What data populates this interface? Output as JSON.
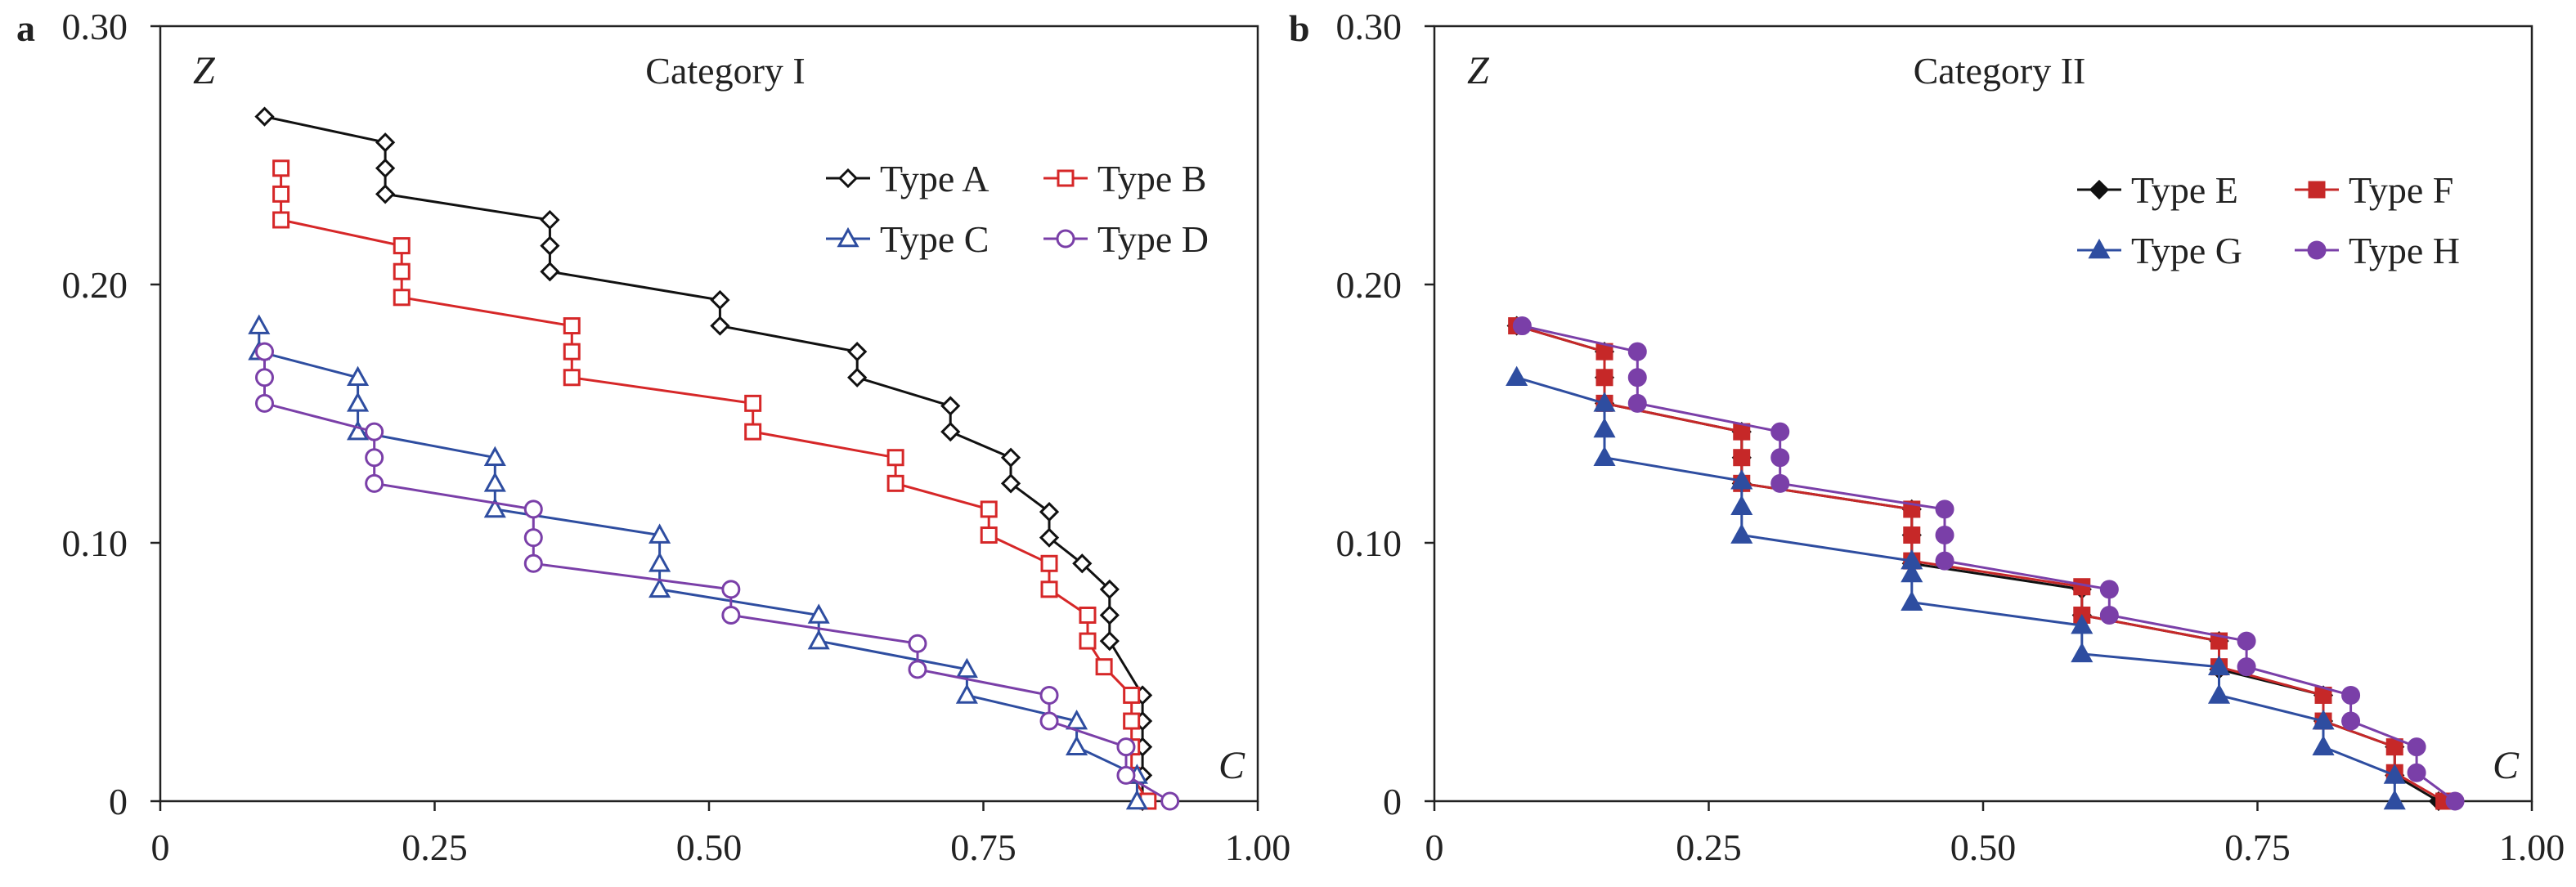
{
  "chart_data": [
    {
      "type": "line",
      "panel_label": "a",
      "title": "Category I",
      "xlabel": "C",
      "ylabel": "Z",
      "xlim": [
        0,
        1.0
      ],
      "ylim": [
        0,
        0.3
      ],
      "x_ticks": [
        "0",
        "0.25",
        "0.50",
        "0.75",
        "1.00"
      ],
      "y_ticks": [
        "0",
        "0.10",
        "0.20",
        "0.30"
      ],
      "grid": false,
      "legend_position": "top-right",
      "series": [
        {
          "name": "Type A",
          "color": "#111111",
          "marker": "diamond-open",
          "points": [
            [
              0.095,
              0.265
            ],
            [
              0.205,
              0.255
            ],
            [
              0.205,
              0.245
            ],
            [
              0.205,
              0.235
            ],
            [
              0.355,
              0.225
            ],
            [
              0.355,
              0.215
            ],
            [
              0.355,
              0.205
            ],
            [
              0.51,
              0.194
            ],
            [
              0.51,
              0.184
            ],
            [
              0.635,
              0.174
            ],
            [
              0.635,
              0.164
            ],
            [
              0.72,
              0.153
            ],
            [
              0.72,
              0.143
            ],
            [
              0.775,
              0.133
            ],
            [
              0.775,
              0.123
            ],
            [
              0.81,
              0.112
            ],
            [
              0.81,
              0.102
            ],
            [
              0.84,
              0.092
            ],
            [
              0.865,
              0.082
            ],
            [
              0.865,
              0.072
            ],
            [
              0.865,
              0.062
            ],
            [
              0.895,
              0.041
            ],
            [
              0.895,
              0.031
            ],
            [
              0.895,
              0.021
            ],
            [
              0.895,
              0.01
            ],
            [
              0.895,
              0.0
            ]
          ]
        },
        {
          "name": "Type B",
          "color": "#d62728",
          "marker": "square-open",
          "points": [
            [
              0.11,
              0.245
            ],
            [
              0.11,
              0.235
            ],
            [
              0.11,
              0.225
            ],
            [
              0.22,
              0.215
            ],
            [
              0.22,
              0.205
            ],
            [
              0.22,
              0.195
            ],
            [
              0.375,
              0.184
            ],
            [
              0.375,
              0.174
            ],
            [
              0.375,
              0.164
            ],
            [
              0.54,
              0.154
            ],
            [
              0.54,
              0.143
            ],
            [
              0.67,
              0.133
            ],
            [
              0.67,
              0.123
            ],
            [
              0.755,
              0.113
            ],
            [
              0.755,
              0.103
            ],
            [
              0.81,
              0.092
            ],
            [
              0.81,
              0.082
            ],
            [
              0.845,
              0.072
            ],
            [
              0.845,
              0.062
            ],
            [
              0.86,
              0.052
            ],
            [
              0.885,
              0.041
            ],
            [
              0.885,
              0.031
            ],
            [
              0.885,
              0.021
            ],
            [
              0.885,
              0.01
            ],
            [
              0.9,
              0.0
            ]
          ]
        },
        {
          "name": "Type C",
          "color": "#2e4da0",
          "marker": "triangle-open",
          "points": [
            [
              0.09,
              0.184
            ],
            [
              0.09,
              0.174
            ],
            [
              0.18,
              0.164
            ],
            [
              0.18,
              0.154
            ],
            [
              0.18,
              0.143
            ],
            [
              0.305,
              0.133
            ],
            [
              0.305,
              0.123
            ],
            [
              0.305,
              0.113
            ],
            [
              0.455,
              0.103
            ],
            [
              0.455,
              0.092
            ],
            [
              0.455,
              0.082
            ],
            [
              0.6,
              0.072
            ],
            [
              0.6,
              0.062
            ],
            [
              0.735,
              0.051
            ],
            [
              0.735,
              0.041
            ],
            [
              0.835,
              0.031
            ],
            [
              0.835,
              0.021
            ],
            [
              0.89,
              0.01
            ],
            [
              0.89,
              0.0
            ]
          ]
        },
        {
          "name": "Type D",
          "color": "#7a3fa8",
          "marker": "circle-open",
          "points": [
            [
              0.095,
              0.174
            ],
            [
              0.095,
              0.164
            ],
            [
              0.095,
              0.154
            ],
            [
              0.195,
              0.143
            ],
            [
              0.195,
              0.133
            ],
            [
              0.195,
              0.123
            ],
            [
              0.34,
              0.113
            ],
            [
              0.34,
              0.102
            ],
            [
              0.34,
              0.092
            ],
            [
              0.52,
              0.082
            ],
            [
              0.52,
              0.072
            ],
            [
              0.69,
              0.061
            ],
            [
              0.69,
              0.051
            ],
            [
              0.81,
              0.041
            ],
            [
              0.81,
              0.031
            ],
            [
              0.88,
              0.021
            ],
            [
              0.88,
              0.01
            ],
            [
              0.92,
              0.0
            ]
          ]
        }
      ]
    },
    {
      "type": "line",
      "panel_label": "b",
      "title": "Category II",
      "xlabel": "C",
      "ylabel": "Z",
      "xlim": [
        0,
        1.0
      ],
      "ylim": [
        0,
        0.3
      ],
      "x_ticks": [
        "0",
        "0.25",
        "0.50",
        "0.75",
        "1.00"
      ],
      "y_ticks": [
        "0",
        "0.10",
        "0.20",
        "0.30"
      ],
      "grid": false,
      "legend_position": "top-right",
      "series": [
        {
          "name": "Type E",
          "color": "#111111",
          "marker": "diamond-filled",
          "points": [
            [
              0.075,
              0.184
            ],
            [
              0.155,
              0.174
            ],
            [
              0.155,
              0.164
            ],
            [
              0.155,
              0.154
            ],
            [
              0.28,
              0.143
            ],
            [
              0.28,
              0.133
            ],
            [
              0.28,
              0.123
            ],
            [
              0.435,
              0.113
            ],
            [
              0.435,
              0.103
            ],
            [
              0.435,
              0.092
            ],
            [
              0.59,
              0.082
            ],
            [
              0.59,
              0.072
            ],
            [
              0.715,
              0.062
            ],
            [
              0.715,
              0.051
            ],
            [
              0.81,
              0.041
            ],
            [
              0.81,
              0.031
            ],
            [
              0.875,
              0.021
            ],
            [
              0.875,
              0.01
            ],
            [
              0.915,
              0.0
            ]
          ]
        },
        {
          "name": "Type F",
          "color": "#c62828",
          "marker": "square-filled",
          "points": [
            [
              0.075,
              0.184
            ],
            [
              0.155,
              0.174
            ],
            [
              0.155,
              0.164
            ],
            [
              0.155,
              0.154
            ],
            [
              0.28,
              0.143
            ],
            [
              0.28,
              0.133
            ],
            [
              0.28,
              0.123
            ],
            [
              0.435,
              0.113
            ],
            [
              0.435,
              0.103
            ],
            [
              0.435,
              0.093
            ],
            [
              0.59,
              0.083
            ],
            [
              0.59,
              0.072
            ],
            [
              0.715,
              0.062
            ],
            [
              0.715,
              0.052
            ],
            [
              0.81,
              0.041
            ],
            [
              0.81,
              0.031
            ],
            [
              0.875,
              0.021
            ],
            [
              0.875,
              0.011
            ],
            [
              0.92,
              0.0
            ]
          ]
        },
        {
          "name": "Type G",
          "color": "#2e4da0",
          "marker": "triangle-filled",
          "points": [
            [
              0.075,
              0.164
            ],
            [
              0.155,
              0.154
            ],
            [
              0.155,
              0.144
            ],
            [
              0.155,
              0.133
            ],
            [
              0.28,
              0.124
            ],
            [
              0.28,
              0.114
            ],
            [
              0.28,
              0.103
            ],
            [
              0.435,
              0.093
            ],
            [
              0.435,
              0.088
            ],
            [
              0.435,
              0.077
            ],
            [
              0.59,
              0.068
            ],
            [
              0.59,
              0.057
            ],
            [
              0.715,
              0.052
            ],
            [
              0.715,
              0.041
            ],
            [
              0.81,
              0.031
            ],
            [
              0.81,
              0.021
            ],
            [
              0.875,
              0.01
            ],
            [
              0.875,
              0.0
            ]
          ]
        },
        {
          "name": "Type H",
          "color": "#7a3fa8",
          "marker": "circle-filled",
          "points": [
            [
              0.08,
              0.184
            ],
            [
              0.185,
              0.174
            ],
            [
              0.185,
              0.164
            ],
            [
              0.185,
              0.154
            ],
            [
              0.315,
              0.143
            ],
            [
              0.315,
              0.133
            ],
            [
              0.315,
              0.123
            ],
            [
              0.465,
              0.113
            ],
            [
              0.465,
              0.103
            ],
            [
              0.465,
              0.093
            ],
            [
              0.615,
              0.082
            ],
            [
              0.615,
              0.072
            ],
            [
              0.74,
              0.062
            ],
            [
              0.74,
              0.052
            ],
            [
              0.835,
              0.041
            ],
            [
              0.835,
              0.031
            ],
            [
              0.895,
              0.021
            ],
            [
              0.895,
              0.011
            ],
            [
              0.93,
              0.0
            ]
          ]
        }
      ]
    }
  ]
}
